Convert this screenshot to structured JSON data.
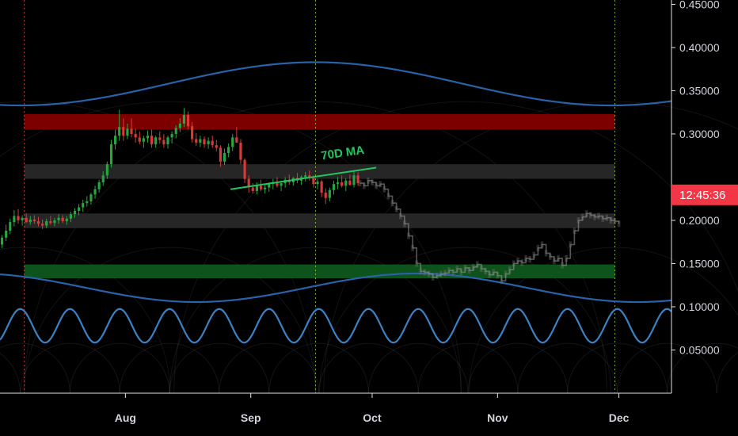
{
  "chart_data": {
    "type": "candlestick",
    "y_axis": {
      "ticks": [
        "0.45000",
        "0.40000",
        "0.35000",
        "0.30000",
        "0.20000",
        "0.15000",
        "0.10000",
        "0.05000"
      ],
      "tick_values": [
        0.45,
        0.4,
        0.35,
        0.3,
        0.2,
        0.15,
        0.1,
        0.05
      ],
      "ylim": [
        0.0,
        0.455
      ]
    },
    "x_axis": {
      "ticks": [
        "Aug",
        "Sep",
        "Oct",
        "Nov",
        "Dec"
      ],
      "tick_days": [
        31,
        62,
        92,
        123,
        153
      ],
      "xlim": [
        0,
        166
      ]
    },
    "price_label": {
      "text": "12:45:36",
      "value": 0.2295,
      "color": "#f23645"
    },
    "annotation": {
      "text": "70D MA",
      "color": "#22c55e"
    },
    "zones": [
      {
        "color": "#8b0000",
        "low": 0.305,
        "high": 0.323
      },
      {
        "color": "#2a2a2a",
        "low": 0.248,
        "high": 0.265
      },
      {
        "color": "#2a2a2a",
        "low": 0.191,
        "high": 0.208
      },
      {
        "color": "#0f5c1e",
        "low": 0.133,
        "high": 0.149
      }
    ],
    "ma_line": {
      "from": [
        57,
        0.236
      ],
      "to": [
        93,
        0.261
      ]
    },
    "vertical_markers": [
      {
        "day": 6,
        "color": "#d64545"
      },
      {
        "day": 78,
        "color": "#8fbf3c"
      },
      {
        "day": 152,
        "color": "#8fbf3c"
      }
    ],
    "candles_ohlc": [
      [
        0.172,
        0.183,
        0.168,
        0.18
      ],
      [
        0.18,
        0.195,
        0.176,
        0.188
      ],
      [
        0.188,
        0.202,
        0.184,
        0.198
      ],
      [
        0.198,
        0.212,
        0.193,
        0.205
      ],
      [
        0.205,
        0.213,
        0.196,
        0.2
      ],
      [
        0.2,
        0.206,
        0.194,
        0.203
      ],
      [
        0.203,
        0.208,
        0.197,
        0.198
      ],
      [
        0.198,
        0.205,
        0.195,
        0.201
      ],
      [
        0.201,
        0.206,
        0.196,
        0.199
      ],
      [
        0.199,
        0.204,
        0.193,
        0.196
      ],
      [
        0.196,
        0.201,
        0.19,
        0.194
      ],
      [
        0.194,
        0.202,
        0.191,
        0.199
      ],
      [
        0.199,
        0.205,
        0.195,
        0.197
      ],
      [
        0.197,
        0.203,
        0.193,
        0.2
      ],
      [
        0.2,
        0.207,
        0.196,
        0.203
      ],
      [
        0.203,
        0.206,
        0.197,
        0.199
      ],
      [
        0.199,
        0.205,
        0.195,
        0.202
      ],
      [
        0.202,
        0.21,
        0.198,
        0.207
      ],
      [
        0.207,
        0.214,
        0.203,
        0.211
      ],
      [
        0.211,
        0.219,
        0.206,
        0.215
      ],
      [
        0.215,
        0.224,
        0.21,
        0.22
      ],
      [
        0.22,
        0.228,
        0.216,
        0.222
      ],
      [
        0.222,
        0.232,
        0.218,
        0.23
      ],
      [
        0.23,
        0.24,
        0.225,
        0.236
      ],
      [
        0.236,
        0.247,
        0.232,
        0.244
      ],
      [
        0.244,
        0.257,
        0.24,
        0.252
      ],
      [
        0.252,
        0.268,
        0.248,
        0.265
      ],
      [
        0.265,
        0.293,
        0.261,
        0.288
      ],
      [
        0.288,
        0.305,
        0.282,
        0.298
      ],
      [
        0.298,
        0.328,
        0.292,
        0.308
      ],
      [
        0.308,
        0.318,
        0.292,
        0.298
      ],
      [
        0.298,
        0.312,
        0.294,
        0.306
      ],
      [
        0.306,
        0.318,
        0.296,
        0.3
      ],
      [
        0.3,
        0.306,
        0.29,
        0.296
      ],
      [
        0.296,
        0.303,
        0.288,
        0.291
      ],
      [
        0.291,
        0.298,
        0.284,
        0.295
      ],
      [
        0.295,
        0.304,
        0.29,
        0.298
      ],
      [
        0.298,
        0.305,
        0.284,
        0.288
      ],
      [
        0.288,
        0.298,
        0.284,
        0.296
      ],
      [
        0.296,
        0.303,
        0.289,
        0.293
      ],
      [
        0.293,
        0.3,
        0.284,
        0.288
      ],
      [
        0.288,
        0.298,
        0.283,
        0.296
      ],
      [
        0.296,
        0.303,
        0.289,
        0.3
      ],
      [
        0.3,
        0.31,
        0.295,
        0.307
      ],
      [
        0.307,
        0.318,
        0.302,
        0.312
      ],
      [
        0.312,
        0.33,
        0.308,
        0.322
      ],
      [
        0.322,
        0.326,
        0.305,
        0.309
      ],
      [
        0.309,
        0.314,
        0.29,
        0.294
      ],
      [
        0.294,
        0.301,
        0.286,
        0.29
      ],
      [
        0.29,
        0.298,
        0.285,
        0.294
      ],
      [
        0.294,
        0.297,
        0.284,
        0.288
      ],
      [
        0.288,
        0.296,
        0.283,
        0.292
      ],
      [
        0.292,
        0.298,
        0.284,
        0.287
      ],
      [
        0.287,
        0.293,
        0.28,
        0.284
      ],
      [
        0.284,
        0.287,
        0.262,
        0.268
      ],
      [
        0.268,
        0.283,
        0.264,
        0.278
      ],
      [
        0.278,
        0.289,
        0.273,
        0.285
      ],
      [
        0.285,
        0.3,
        0.28,
        0.296
      ],
      [
        0.296,
        0.308,
        0.29,
        0.29
      ],
      [
        0.29,
        0.294,
        0.265,
        0.27
      ],
      [
        0.27,
        0.272,
        0.243,
        0.248
      ],
      [
        0.248,
        0.252,
        0.232,
        0.238
      ],
      [
        0.238,
        0.243,
        0.231,
        0.234
      ],
      [
        0.234,
        0.244,
        0.23,
        0.24
      ],
      [
        0.24,
        0.247,
        0.234,
        0.236
      ],
      [
        0.236,
        0.241,
        0.231,
        0.238
      ],
      [
        0.238,
        0.244,
        0.233,
        0.242
      ],
      [
        0.242,
        0.248,
        0.236,
        0.244
      ],
      [
        0.244,
        0.25,
        0.238,
        0.24
      ],
      [
        0.24,
        0.246,
        0.234,
        0.243
      ],
      [
        0.243,
        0.25,
        0.238,
        0.247
      ],
      [
        0.247,
        0.253,
        0.241,
        0.244
      ],
      [
        0.244,
        0.25,
        0.24,
        0.249
      ],
      [
        0.249,
        0.255,
        0.243,
        0.246
      ],
      [
        0.246,
        0.252,
        0.241,
        0.25
      ],
      [
        0.25,
        0.256,
        0.245,
        0.252
      ],
      [
        0.252,
        0.258,
        0.246,
        0.249
      ],
      [
        0.249,
        0.252,
        0.238,
        0.242
      ],
      [
        0.242,
        0.248,
        0.236,
        0.245
      ],
      [
        0.245,
        0.247,
        0.227,
        0.232
      ],
      [
        0.232,
        0.237,
        0.219,
        0.226
      ],
      [
        0.226,
        0.238,
        0.222,
        0.235
      ],
      [
        0.235,
        0.246,
        0.23,
        0.242
      ],
      [
        0.242,
        0.25,
        0.236,
        0.244
      ],
      [
        0.244,
        0.252,
        0.238,
        0.24
      ],
      [
        0.24,
        0.249,
        0.234,
        0.246
      ],
      [
        0.246,
        0.253,
        0.24,
        0.241
      ],
      [
        0.241,
        0.258,
        0.238,
        0.252
      ],
      [
        0.252,
        0.256,
        0.24,
        0.243
      ]
    ],
    "ghost_path": [
      [
        89,
        0.243
      ],
      [
        90,
        0.24
      ],
      [
        91,
        0.246
      ],
      [
        92,
        0.244
      ],
      [
        93,
        0.24
      ],
      [
        94,
        0.242
      ],
      [
        95,
        0.236
      ],
      [
        96,
        0.228
      ],
      [
        97,
        0.22
      ],
      [
        98,
        0.213
      ],
      [
        99,
        0.205
      ],
      [
        100,
        0.196
      ],
      [
        101,
        0.182
      ],
      [
        102,
        0.168
      ],
      [
        103,
        0.15
      ],
      [
        104,
        0.141
      ],
      [
        105,
        0.14
      ],
      [
        106,
        0.138
      ],
      [
        107,
        0.134
      ],
      [
        108,
        0.136
      ],
      [
        109,
        0.138
      ],
      [
        110,
        0.139
      ],
      [
        111,
        0.142
      ],
      [
        112,
        0.14
      ],
      [
        113,
        0.144
      ],
      [
        114,
        0.14
      ],
      [
        115,
        0.145
      ],
      [
        116,
        0.142
      ],
      [
        117,
        0.146
      ],
      [
        118,
        0.149
      ],
      [
        119,
        0.144
      ],
      [
        120,
        0.141
      ],
      [
        121,
        0.137
      ],
      [
        122,
        0.14
      ],
      [
        123,
        0.136
      ],
      [
        124,
        0.13
      ],
      [
        125,
        0.138
      ],
      [
        126,
        0.143
      ],
      [
        127,
        0.15
      ],
      [
        128,
        0.153
      ],
      [
        129,
        0.151
      ],
      [
        130,
        0.156
      ],
      [
        131,
        0.155
      ],
      [
        132,
        0.16
      ],
      [
        133,
        0.168
      ],
      [
        134,
        0.172
      ],
      [
        135,
        0.162
      ],
      [
        136,
        0.158
      ],
      [
        137,
        0.153
      ],
      [
        138,
        0.156
      ],
      [
        139,
        0.148
      ],
      [
        140,
        0.156
      ],
      [
        141,
        0.172
      ],
      [
        142,
        0.188
      ],
      [
        143,
        0.2
      ],
      [
        144,
        0.204
      ],
      [
        145,
        0.208
      ],
      [
        146,
        0.206
      ],
      [
        147,
        0.204
      ],
      [
        148,
        0.205
      ],
      [
        149,
        0.202
      ],
      [
        150,
        0.203
      ],
      [
        151,
        0.2
      ],
      [
        152,
        0.199
      ],
      [
        153,
        0.196
      ]
    ],
    "big_wave": {
      "base": 0.358,
      "amplitude": 0.025,
      "peak_day": 78,
      "period": 146,
      "color": "#2962a8"
    },
    "low_wave": {
      "base": 0.122,
      "amplitude": 0.0165,
      "peak_day": 103,
      "period": 109,
      "color": "#2962a8"
    },
    "fast_wave": {
      "base": 0.078,
      "amplitude": 0.0195,
      "peak_day": 5,
      "period": 12.3,
      "color": "#3b82c4"
    }
  }
}
